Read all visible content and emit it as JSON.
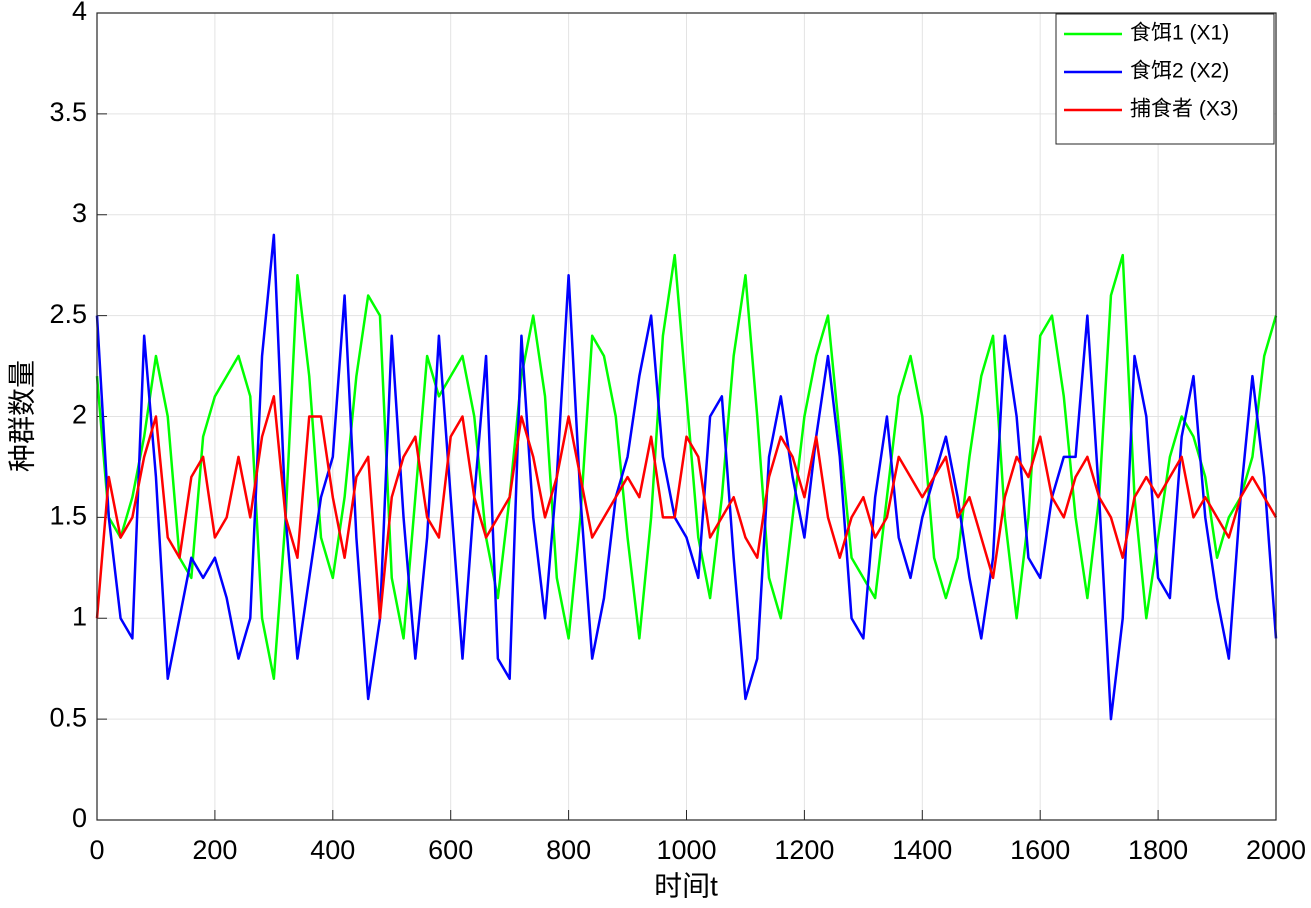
{
  "chart_data": {
    "type": "line",
    "xlabel": "时间t",
    "ylabel": "种群数量",
    "x": [
      0,
      20,
      40,
      60,
      80,
      100,
      120,
      140,
      160,
      180,
      200,
      220,
      240,
      260,
      280,
      300,
      320,
      340,
      360,
      380,
      400,
      420,
      440,
      460,
      480,
      500,
      520,
      540,
      560,
      580,
      600,
      620,
      640,
      660,
      680,
      700,
      720,
      740,
      760,
      780,
      800,
      820,
      840,
      860,
      880,
      900,
      920,
      940,
      960,
      980,
      1000,
      1020,
      1040,
      1060,
      1080,
      1100,
      1120,
      1140,
      1160,
      1180,
      1200,
      1220,
      1240,
      1260,
      1280,
      1300,
      1320,
      1340,
      1360,
      1380,
      1400,
      1420,
      1440,
      1460,
      1480,
      1500,
      1520,
      1540,
      1560,
      1580,
      1600,
      1620,
      1640,
      1660,
      1680,
      1700,
      1720,
      1740,
      1760,
      1780,
      1800,
      1820,
      1840,
      1860,
      1880,
      1900,
      1920,
      1940,
      1960,
      1980,
      2000
    ],
    "series": [
      {
        "name": "食饵1 (X1)",
        "color": "#00ff00",
        "values": [
          2.2,
          1.5,
          1.4,
          1.6,
          1.9,
          2.3,
          2.0,
          1.3,
          1.2,
          1.9,
          2.1,
          2.2,
          2.3,
          2.1,
          1.0,
          0.7,
          1.5,
          2.7,
          2.2,
          1.4,
          1.2,
          1.6,
          2.2,
          2.6,
          2.5,
          1.2,
          0.9,
          1.6,
          2.3,
          2.1,
          2.2,
          2.3,
          2.0,
          1.4,
          1.1,
          1.6,
          2.2,
          2.5,
          2.1,
          1.2,
          0.9,
          1.5,
          2.4,
          2.3,
          2.0,
          1.4,
          0.9,
          1.5,
          2.4,
          2.8,
          2.1,
          1.4,
          1.1,
          1.6,
          2.3,
          2.7,
          2.0,
          1.2,
          1.0,
          1.5,
          2.0,
          2.3,
          2.5,
          1.9,
          1.3,
          1.2,
          1.1,
          1.6,
          2.1,
          2.3,
          2.0,
          1.3,
          1.1,
          1.3,
          1.8,
          2.2,
          2.4,
          1.5,
          1.0,
          1.5,
          2.4,
          2.5,
          2.1,
          1.5,
          1.1,
          1.6,
          2.6,
          2.8,
          1.6,
          1.0,
          1.4,
          1.8,
          2.0,
          1.9,
          1.7,
          1.3,
          1.5,
          1.6,
          1.8,
          2.3,
          2.5
        ]
      },
      {
        "name": "食饵2 (X2)",
        "color": "#0000ff",
        "values": [
          2.5,
          1.5,
          1.0,
          0.9,
          2.4,
          1.7,
          0.7,
          1.0,
          1.3,
          1.2,
          1.3,
          1.1,
          0.8,
          1.0,
          2.3,
          2.9,
          1.5,
          0.8,
          1.2,
          1.6,
          1.8,
          2.6,
          1.4,
          0.6,
          1.0,
          2.4,
          1.5,
          0.8,
          1.4,
          2.4,
          1.6,
          0.8,
          1.6,
          2.3,
          0.8,
          0.7,
          2.4,
          1.5,
          1.0,
          1.7,
          2.7,
          1.6,
          0.8,
          1.1,
          1.6,
          1.8,
          2.2,
          2.5,
          1.8,
          1.5,
          1.4,
          1.2,
          2.0,
          2.1,
          1.3,
          0.6,
          0.8,
          1.8,
          2.1,
          1.7,
          1.4,
          1.9,
          2.3,
          1.8,
          1.0,
          0.9,
          1.6,
          2.0,
          1.4,
          1.2,
          1.5,
          1.7,
          1.9,
          1.6,
          1.2,
          0.9,
          1.3,
          2.4,
          2.0,
          1.3,
          1.2,
          1.6,
          1.8,
          1.8,
          2.5,
          1.6,
          0.5,
          1.0,
          2.3,
          2.0,
          1.2,
          1.1,
          1.9,
          2.2,
          1.5,
          1.1,
          0.8,
          1.6,
          2.2,
          1.7,
          0.9
        ]
      },
      {
        "name": "捕食者 (X3)",
        "color": "#ff0000",
        "values": [
          1.0,
          1.7,
          1.4,
          1.5,
          1.8,
          2.0,
          1.4,
          1.3,
          1.7,
          1.8,
          1.4,
          1.5,
          1.8,
          1.5,
          1.9,
          2.1,
          1.5,
          1.3,
          2.0,
          2.0,
          1.6,
          1.3,
          1.7,
          1.8,
          1.0,
          1.6,
          1.8,
          1.9,
          1.5,
          1.4,
          1.9,
          2.0,
          1.6,
          1.4,
          1.5,
          1.6,
          2.0,
          1.8,
          1.5,
          1.7,
          2.0,
          1.7,
          1.4,
          1.5,
          1.6,
          1.7,
          1.6,
          1.9,
          1.5,
          1.5,
          1.9,
          1.8,
          1.4,
          1.5,
          1.6,
          1.4,
          1.3,
          1.7,
          1.9,
          1.8,
          1.6,
          1.9,
          1.5,
          1.3,
          1.5,
          1.6,
          1.4,
          1.5,
          1.8,
          1.7,
          1.6,
          1.7,
          1.8,
          1.5,
          1.6,
          1.4,
          1.2,
          1.6,
          1.8,
          1.7,
          1.9,
          1.6,
          1.5,
          1.7,
          1.8,
          1.6,
          1.5,
          1.3,
          1.6,
          1.7,
          1.6,
          1.7,
          1.8,
          1.5,
          1.6,
          1.5,
          1.4,
          1.6,
          1.7,
          1.6,
          1.5
        ]
      }
    ],
    "xlim": [
      0,
      2000
    ],
    "xticks": [
      0,
      200,
      400,
      600,
      800,
      1000,
      1200,
      1400,
      1600,
      1800,
      2000
    ],
    "ylim": [
      0,
      4
    ],
    "yticks": [
      0,
      0.5,
      1,
      1.5,
      2,
      2.5,
      3,
      3.5,
      4
    ],
    "grid": true,
    "legend": "northeast"
  }
}
